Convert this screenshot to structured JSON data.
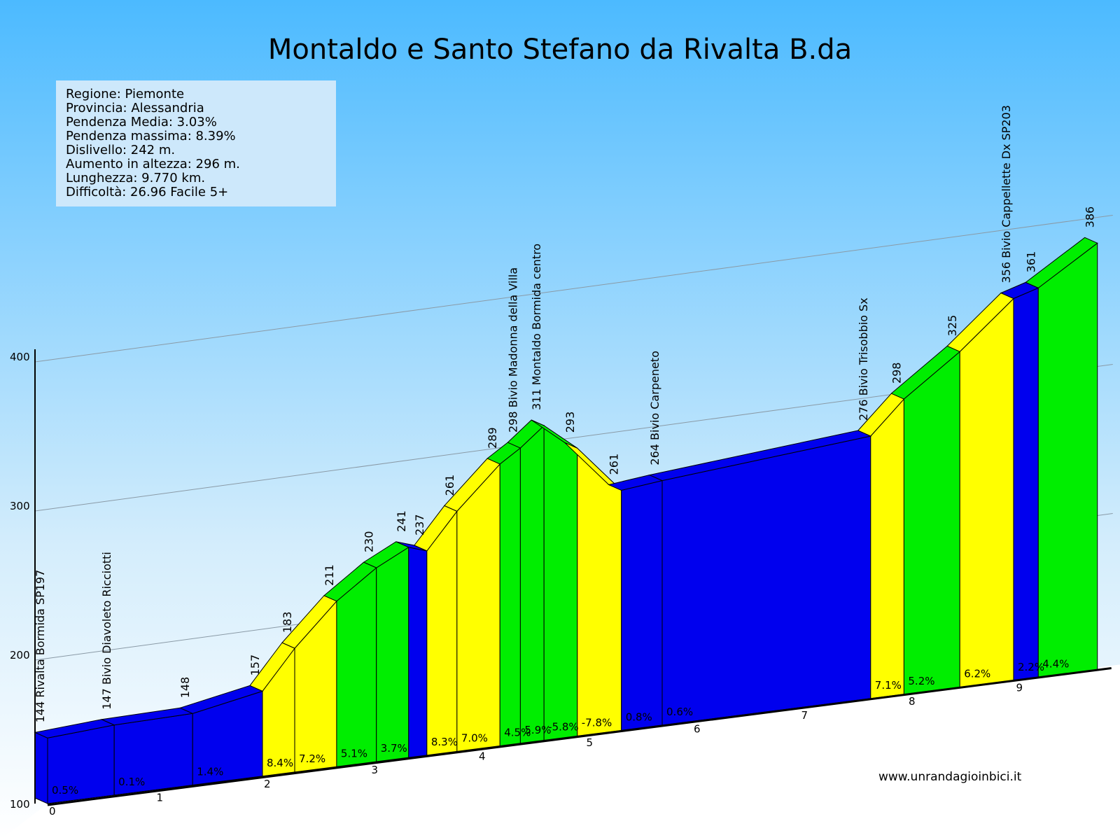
{
  "chart_data": {
    "type": "area",
    "title": "Montaldo e Santo Stefano da Rivalta B.da",
    "info": [
      "Regione: Piemonte",
      "Provincia: Alessandria",
      "Pendenza Media: 3.03%",
      "Pendenza massima: 8.39%",
      "Dislivello:   242 m.",
      "Aumento in altezza:   296 m.",
      "Lunghezza:  9.770 km.",
      "Difficoltà: 26.96 Facile 5+"
    ],
    "credit": "www.unrandagioinbici.it",
    "xlabel": "",
    "ylabel": "",
    "ylim": [
      100,
      400
    ],
    "y_ticks": [
      "100",
      "200",
      "300",
      "400"
    ],
    "x_ticks": [
      "0",
      "1",
      "2",
      "3",
      "4",
      "5",
      "6",
      "7",
      "8",
      "9"
    ],
    "grid": true,
    "gradient_colors": {
      "blue": "#0000ee",
      "yellow": "#ffff00",
      "green": "#00ee00"
    },
    "points": [
      {
        "km": 0.0,
        "alt": 144,
        "label": "144 Rivalta Bormida SP197"
      },
      {
        "km": 0.62,
        "alt": 147,
        "label": "147 Bivio Diavoleto Ricciotti"
      },
      {
        "km": 1.35,
        "alt": 148,
        "label": "148"
      },
      {
        "km": 2.0,
        "alt": 157,
        "label": "157"
      },
      {
        "km": 2.3,
        "alt": 183,
        "label": "183"
      },
      {
        "km": 2.69,
        "alt": 211,
        "label": "211"
      },
      {
        "km": 3.06,
        "alt": 230,
        "label": "230"
      },
      {
        "km": 3.36,
        "alt": 241,
        "label": "241"
      },
      {
        "km": 3.53,
        "alt": 237,
        "label": "237"
      },
      {
        "km": 3.81,
        "alt": 261,
        "label": "261"
      },
      {
        "km": 4.21,
        "alt": 289,
        "label": "289"
      },
      {
        "km": 4.4,
        "alt": 298,
        "label": "298 Bivio Madonna della Villa"
      },
      {
        "km": 4.62,
        "alt": 311,
        "label": "311 Montaldo Bormida centro"
      },
      {
        "km": 4.93,
        "alt": 293,
        "label": "293"
      },
      {
        "km": 5.34,
        "alt": 261,
        "label": "261"
      },
      {
        "km": 5.72,
        "alt": 264,
        "label": "264 Bivio Carpeneto"
      },
      {
        "km": 7.66,
        "alt": 276,
        "label": "276 Bivio Trisobbio Sx"
      },
      {
        "km": 7.97,
        "alt": 298,
        "label": "298"
      },
      {
        "km": 8.49,
        "alt": 325,
        "label": "325"
      },
      {
        "km": 8.99,
        "alt": 356,
        "label": "356 Bivio Cappellette Dx SP203"
      },
      {
        "km": 9.22,
        "alt": 361,
        "label": "361"
      },
      {
        "km": 9.77,
        "alt": 386,
        "label": "386"
      }
    ],
    "segments": [
      {
        "grade": "0.5%",
        "color": "blue"
      },
      {
        "grade": "0.1%",
        "color": "blue"
      },
      {
        "grade": "1.4%",
        "color": "blue"
      },
      {
        "grade": "8.4%",
        "color": "yellow"
      },
      {
        "grade": "7.2%",
        "color": "yellow"
      },
      {
        "grade": "5.1%",
        "color": "green"
      },
      {
        "grade": "3.7%",
        "color": "green"
      },
      {
        "grade": "",
        "color": "blue"
      },
      {
        "grade": "8.3%",
        "color": "yellow"
      },
      {
        "grade": "7.0%",
        "color": "yellow"
      },
      {
        "grade": "4.5%",
        "color": "green"
      },
      {
        "grade": "5.9%",
        "color": "green"
      },
      {
        "grade": "-5.8%",
        "color": "green"
      },
      {
        "grade": "-7.8%",
        "color": "yellow"
      },
      {
        "grade": "0.8%",
        "color": "blue"
      },
      {
        "grade": "0.6%",
        "color": "blue"
      },
      {
        "grade": "7.1%",
        "color": "yellow"
      },
      {
        "grade": "5.2%",
        "color": "green"
      },
      {
        "grade": "6.2%",
        "color": "yellow"
      },
      {
        "grade": "2.2%",
        "color": "blue"
      },
      {
        "grade": "4.4%",
        "color": "green"
      }
    ]
  }
}
